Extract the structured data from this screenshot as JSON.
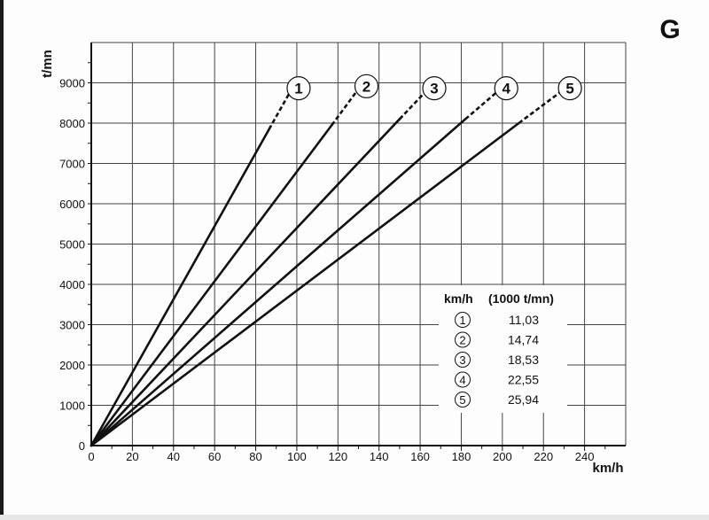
{
  "corner_letter": "G",
  "chart_data": {
    "type": "line",
    "title": "",
    "xlabel": "km/h",
    "ylabel": "t/mn",
    "xlim": [
      0,
      260
    ],
    "ylim": [
      0,
      10000
    ],
    "x_ticks": [
      0,
      20,
      40,
      60,
      80,
      100,
      120,
      140,
      160,
      180,
      200,
      220,
      240
    ],
    "y_ticks": [
      0,
      1000,
      2000,
      3000,
      4000,
      5000,
      6000,
      7000,
      8000,
      9000
    ],
    "grid": true,
    "series": [
      {
        "name": "1",
        "km_h_per_1000_rpm": "11,03",
        "solid": [
          [
            0,
            0
          ],
          [
            86.5,
            7850
          ]
        ],
        "dashed": [
          [
            86.5,
            7850
          ],
          [
            97,
            8800
          ]
        ]
      },
      {
        "name": "2",
        "km_h_per_1000_rpm": "14,74",
        "solid": [
          [
            0,
            0
          ],
          [
            117,
            7950
          ]
        ],
        "dashed": [
          [
            117,
            7950
          ],
          [
            130,
            8850
          ]
        ]
      },
      {
        "name": "3",
        "km_h_per_1000_rpm": "18,53",
        "solid": [
          [
            0,
            0
          ],
          [
            150,
            8100
          ]
        ],
        "dashed": [
          [
            150,
            8100
          ],
          [
            163,
            8800
          ]
        ]
      },
      {
        "name": "4",
        "km_h_per_1000_rpm": "22,55",
        "solid": [
          [
            0,
            0
          ],
          [
            182,
            8100
          ]
        ],
        "dashed": [
          [
            182,
            8100
          ],
          [
            198,
            8800
          ]
        ]
      },
      {
        "name": "5",
        "km_h_per_1000_rpm": "25,94",
        "solid": [
          [
            0,
            0
          ],
          [
            208,
            8000
          ]
        ],
        "dashed": [
          [
            208,
            8000
          ],
          [
            229,
            8800
          ]
        ]
      }
    ],
    "legend": {
      "placement": "lower-right",
      "header_left": "km/h",
      "header_right": "(1000 t/mn)",
      "rows": [
        {
          "badge": "1",
          "value": "11,03"
        },
        {
          "badge": "2",
          "value": "14,74"
        },
        {
          "badge": "3",
          "value": "18,53"
        },
        {
          "badge": "4",
          "value": "22,55"
        },
        {
          "badge": "5",
          "value": "25,94"
        }
      ]
    }
  }
}
